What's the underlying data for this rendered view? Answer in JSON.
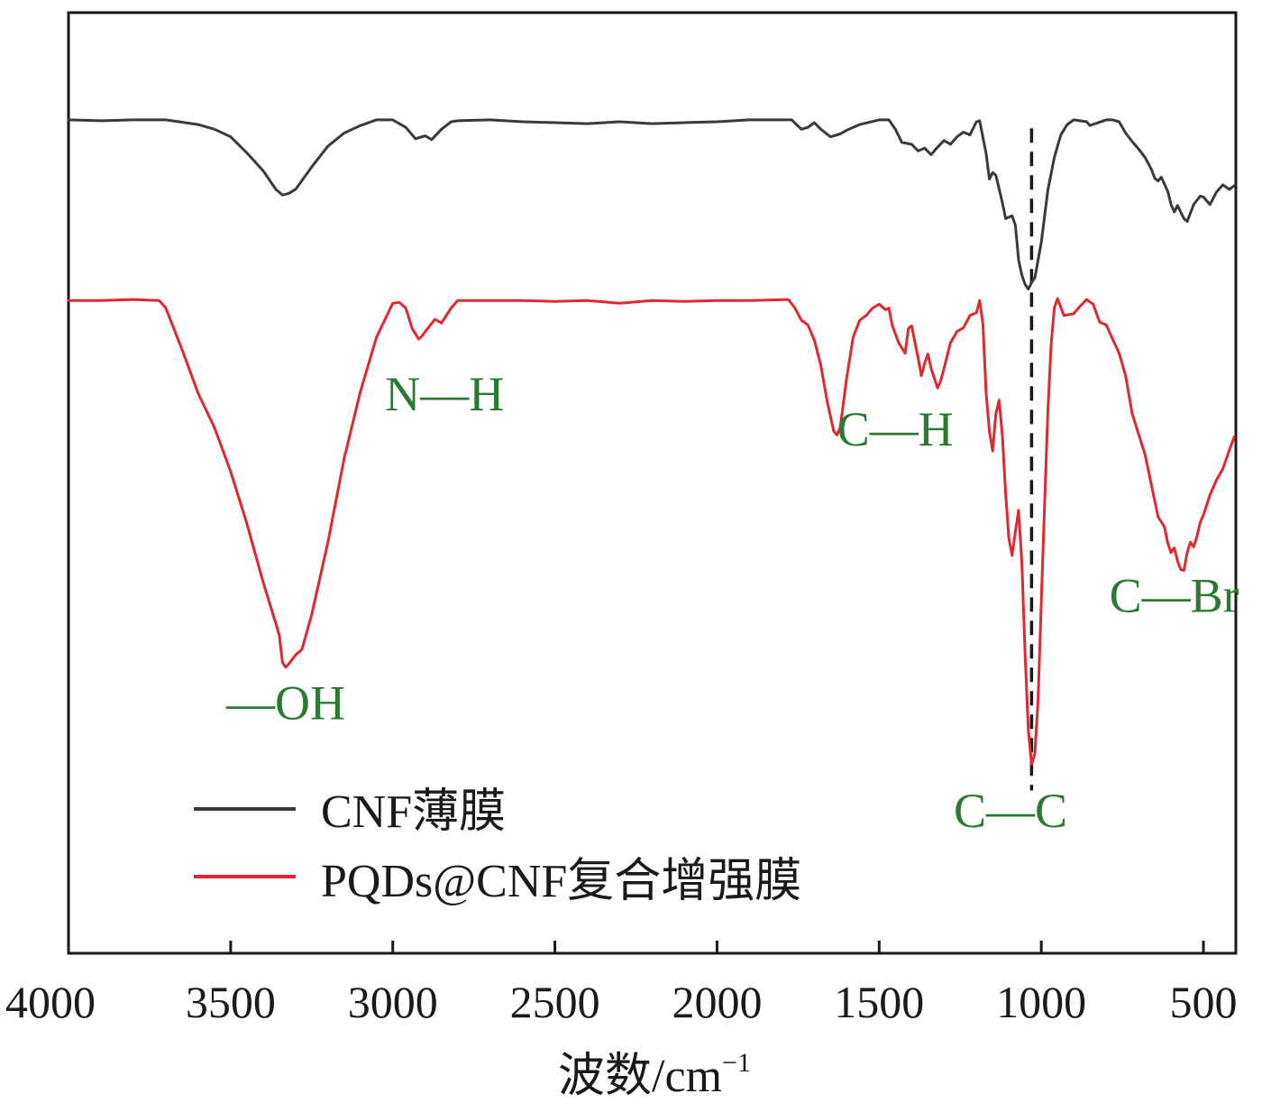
{
  "chart_data": {
    "type": "line",
    "title": "",
    "xlabel": "波数/cm",
    "xlabel_sup": "−1",
    "ylabel": "",
    "x_reversed": true,
    "xlim": [
      4000,
      400
    ],
    "ylim": [
      0,
      100
    ],
    "x_ticks": [
      4000,
      3500,
      3000,
      2500,
      2000,
      1500,
      1000,
      500
    ],
    "y_ticks_shown": false,
    "grid": false,
    "legend_position": "bottom-left",
    "legend": [
      "CNF薄膜",
      "PQDs@CNF复合增强膜"
    ],
    "series": [
      {
        "name": "CNF薄膜",
        "color": "#3a3a3a",
        "points": [
          [
            4000,
            88.6
          ],
          [
            3900,
            88.5
          ],
          [
            3800,
            88.6
          ],
          [
            3700,
            88.6
          ],
          [
            3600,
            88.1
          ],
          [
            3550,
            87.6
          ],
          [
            3500,
            86.8
          ],
          [
            3450,
            85.1
          ],
          [
            3400,
            83.2
          ],
          [
            3360,
            81.2
          ],
          [
            3340,
            80.6
          ],
          [
            3320,
            80.8
          ],
          [
            3300,
            81.2
          ],
          [
            3250,
            83.6
          ],
          [
            3200,
            85.8
          ],
          [
            3150,
            87.2
          ],
          [
            3100,
            88.0
          ],
          [
            3050,
            88.6
          ],
          [
            3000,
            88.6
          ],
          [
            2960,
            87.8
          ],
          [
            2930,
            86.6
          ],
          [
            2900,
            86.9
          ],
          [
            2880,
            86.5
          ],
          [
            2850,
            87.6
          ],
          [
            2820,
            88.4
          ],
          [
            2800,
            88.5
          ],
          [
            2700,
            88.6
          ],
          [
            2600,
            88.4
          ],
          [
            2500,
            88.3
          ],
          [
            2400,
            88.2
          ],
          [
            2300,
            88.4
          ],
          [
            2200,
            88.2
          ],
          [
            2100,
            88.3
          ],
          [
            2000,
            88.4
          ],
          [
            1900,
            88.6
          ],
          [
            1800,
            88.6
          ],
          [
            1770,
            88.6
          ],
          [
            1740,
            87.6
          ],
          [
            1720,
            87.8
          ],
          [
            1700,
            88.3
          ],
          [
            1680,
            87.6
          ],
          [
            1650,
            86.8
          ],
          [
            1620,
            87.1
          ],
          [
            1600,
            87.5
          ],
          [
            1560,
            88.1
          ],
          [
            1500,
            88.6
          ],
          [
            1470,
            88.6
          ],
          [
            1450,
            87.6
          ],
          [
            1430,
            86.2
          ],
          [
            1400,
            86.0
          ],
          [
            1380,
            85.3
          ],
          [
            1360,
            85.6
          ],
          [
            1340,
            84.9
          ],
          [
            1320,
            85.7
          ],
          [
            1300,
            86.4
          ],
          [
            1280,
            86.0
          ],
          [
            1260,
            86.8
          ],
          [
            1240,
            87.3
          ],
          [
            1220,
            87.0
          ],
          [
            1200,
            88.4
          ],
          [
            1190,
            88.5
          ],
          [
            1170,
            85.0
          ],
          [
            1160,
            82.3
          ],
          [
            1150,
            83.0
          ],
          [
            1140,
            82.7
          ],
          [
            1120,
            79.8
          ],
          [
            1110,
            78.1
          ],
          [
            1090,
            78.4
          ],
          [
            1080,
            77.4
          ],
          [
            1070,
            73.7
          ],
          [
            1060,
            72.1
          ],
          [
            1050,
            71.1
          ],
          [
            1040,
            70.6
          ],
          [
            1030,
            71.3
          ],
          [
            1020,
            71.8
          ],
          [
            1000,
            75.6
          ],
          [
            980,
            81.1
          ],
          [
            960,
            84.6
          ],
          [
            940,
            87.0
          ],
          [
            920,
            88.1
          ],
          [
            900,
            88.6
          ],
          [
            860,
            88.4
          ],
          [
            850,
            88.0
          ],
          [
            800,
            88.6
          ],
          [
            780,
            88.6
          ],
          [
            760,
            88.4
          ],
          [
            740,
            87.2
          ],
          [
            720,
            86.3
          ],
          [
            700,
            85.5
          ],
          [
            680,
            84.6
          ],
          [
            660,
            83.3
          ],
          [
            650,
            82.4
          ],
          [
            640,
            82.1
          ],
          [
            630,
            82.5
          ],
          [
            610,
            81.0
          ],
          [
            600,
            79.6
          ],
          [
            590,
            78.8
          ],
          [
            580,
            79.5
          ],
          [
            560,
            78.1
          ],
          [
            550,
            77.8
          ],
          [
            530,
            79.6
          ],
          [
            510,
            80.5
          ],
          [
            500,
            80.4
          ],
          [
            480,
            79.6
          ],
          [
            460,
            80.9
          ],
          [
            440,
            81.7
          ],
          [
            420,
            81.2
          ],
          [
            405,
            81.6
          ]
        ]
      },
      {
        "name": "PQDs@CNF复合增强膜",
        "color": "#e0282e",
        "points": [
          [
            4000,
            69.4
          ],
          [
            3900,
            69.4
          ],
          [
            3800,
            69.5
          ],
          [
            3720,
            69.4
          ],
          [
            3700,
            68.6
          ],
          [
            3650,
            64.2
          ],
          [
            3600,
            59.5
          ],
          [
            3550,
            55.9
          ],
          [
            3500,
            51.2
          ],
          [
            3450,
            45.7
          ],
          [
            3400,
            39.5
          ],
          [
            3360,
            35.0
          ],
          [
            3350,
            33.8
          ],
          [
            3340,
            30.9
          ],
          [
            3330,
            30.4
          ],
          [
            3320,
            30.8
          ],
          [
            3300,
            31.7
          ],
          [
            3280,
            32.3
          ],
          [
            3250,
            36.0
          ],
          [
            3200,
            43.7
          ],
          [
            3150,
            52.6
          ],
          [
            3100,
            59.7
          ],
          [
            3050,
            65.5
          ],
          [
            3000,
            69.1
          ],
          [
            2980,
            69.2
          ],
          [
            2960,
            68.6
          ],
          [
            2940,
            66.4
          ],
          [
            2920,
            65.3
          ],
          [
            2910,
            65.6
          ],
          [
            2900,
            66.1
          ],
          [
            2870,
            67.4
          ],
          [
            2850,
            67.0
          ],
          [
            2820,
            68.6
          ],
          [
            2800,
            69.4
          ],
          [
            2700,
            69.4
          ],
          [
            2600,
            69.4
          ],
          [
            2500,
            69.3
          ],
          [
            2400,
            69.4
          ],
          [
            2300,
            69.1
          ],
          [
            2200,
            69.4
          ],
          [
            2100,
            69.3
          ],
          [
            2000,
            69.4
          ],
          [
            1900,
            69.4
          ],
          [
            1780,
            69.5
          ],
          [
            1760,
            68.6
          ],
          [
            1740,
            67.3
          ],
          [
            1720,
            66.8
          ],
          [
            1700,
            65.2
          ],
          [
            1680,
            62.5
          ],
          [
            1660,
            58.6
          ],
          [
            1640,
            55.5
          ],
          [
            1630,
            55.1
          ],
          [
            1620,
            55.9
          ],
          [
            1600,
            61.2
          ],
          [
            1580,
            65.5
          ],
          [
            1560,
            67.3
          ],
          [
            1540,
            67.8
          ],
          [
            1520,
            68.6
          ],
          [
            1500,
            69.0
          ],
          [
            1480,
            68.4
          ],
          [
            1470,
            68.6
          ],
          [
            1460,
            66.8
          ],
          [
            1440,
            64.9
          ],
          [
            1420,
            63.8
          ],
          [
            1410,
            66.4
          ],
          [
            1400,
            66.7
          ],
          [
            1380,
            63.3
          ],
          [
            1370,
            61.4
          ],
          [
            1360,
            62.7
          ],
          [
            1350,
            63.7
          ],
          [
            1340,
            62.2
          ],
          [
            1320,
            60.1
          ],
          [
            1310,
            60.9
          ],
          [
            1300,
            62.2
          ],
          [
            1280,
            64.9
          ],
          [
            1260,
            66.1
          ],
          [
            1240,
            66.5
          ],
          [
            1220,
            67.8
          ],
          [
            1200,
            68.1
          ],
          [
            1190,
            69.4
          ],
          [
            1180,
            66.9
          ],
          [
            1170,
            59.5
          ],
          [
            1160,
            55.5
          ],
          [
            1150,
            53.4
          ],
          [
            1140,
            57.4
          ],
          [
            1130,
            58.8
          ],
          [
            1120,
            55.0
          ],
          [
            1110,
            48.9
          ],
          [
            1100,
            44.1
          ],
          [
            1090,
            42.3
          ],
          [
            1080,
            44.8
          ],
          [
            1070,
            47.1
          ],
          [
            1060,
            41.5
          ],
          [
            1050,
            31.8
          ],
          [
            1040,
            23.7
          ],
          [
            1030,
            20.1
          ],
          [
            1020,
            21.2
          ],
          [
            1010,
            26.9
          ],
          [
            1000,
            37.5
          ],
          [
            990,
            47.6
          ],
          [
            980,
            57.5
          ],
          [
            970,
            64.6
          ],
          [
            960,
            68.6
          ],
          [
            950,
            69.6
          ],
          [
            930,
            67.8
          ],
          [
            900,
            68.0
          ],
          [
            880,
            68.8
          ],
          [
            860,
            69.5
          ],
          [
            840,
            69.0
          ],
          [
            820,
            67.1
          ],
          [
            800,
            66.8
          ],
          [
            780,
            65.3
          ],
          [
            760,
            63.8
          ],
          [
            740,
            61.4
          ],
          [
            720,
            57.4
          ],
          [
            700,
            55.2
          ],
          [
            680,
            53.0
          ],
          [
            660,
            49.7
          ],
          [
            640,
            46.4
          ],
          [
            620,
            45.3
          ],
          [
            610,
            43.6
          ],
          [
            600,
            42.6
          ],
          [
            590,
            43.1
          ],
          [
            580,
            41.7
          ],
          [
            570,
            40.8
          ],
          [
            560,
            40.7
          ],
          [
            550,
            42.6
          ],
          [
            540,
            43.7
          ],
          [
            530,
            43.2
          ],
          [
            520,
            44.3
          ],
          [
            510,
            45.8
          ],
          [
            500,
            46.6
          ],
          [
            480,
            48.7
          ],
          [
            460,
            50.3
          ],
          [
            440,
            51.5
          ],
          [
            420,
            53.5
          ],
          [
            405,
            54.9
          ]
        ]
      }
    ],
    "reference_lines": [
      {
        "orientation": "vertical",
        "x": 1030,
        "style": "dashed",
        "color": "#1a1a1a",
        "y_from": 17.3,
        "y_to": 87.7
      }
    ],
    "annotations": [
      {
        "text": "—OH",
        "x": 3330,
        "y": 24.9,
        "color": "#2a7a33"
      },
      {
        "text": "N—H",
        "x": 2840,
        "y": 57.7,
        "color": "#2a7a33"
      },
      {
        "text": "C—H",
        "x": 1450,
        "y": 54.0,
        "color": "#2a7a33"
      },
      {
        "text": "C—C",
        "x": 1095,
        "y": 13.4,
        "color": "#2a7a33"
      },
      {
        "text": "C—Br",
        "x": 590,
        "y": 36.3,
        "color": "#2a7a33"
      }
    ]
  }
}
